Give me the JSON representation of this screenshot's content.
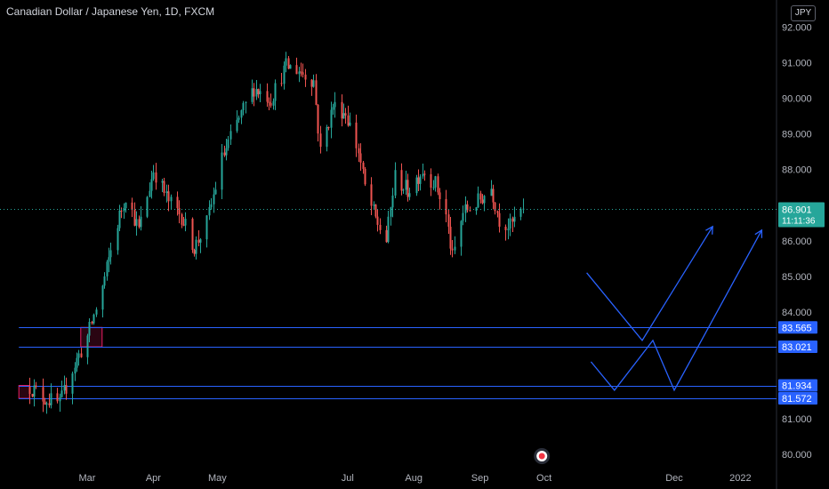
{
  "header": {
    "title": "Canadian Dollar / Japanese Yen, 1D, FXCM",
    "currency_badge": "JPY"
  },
  "price_tag": {
    "price": "86.901",
    "countdown": "11:11:36"
  },
  "colors": {
    "up": "#26a69a",
    "down": "#ef5350",
    "drawing": "#2962ff",
    "zone": "#e91e63",
    "price_tag": "#26a69a",
    "axis_text": "#b2b5be",
    "background": "#000000"
  },
  "chart_data": {
    "type": "candlestick",
    "title": "Canadian Dollar / Japanese Yen, 1D, FXCM",
    "y_axis": {
      "side": "right",
      "range": [
        79.1,
        92.1
      ],
      "ticks": [
        "92.000",
        "91.000",
        "90.000",
        "89.000",
        "88.000",
        "86.000",
        "85.000",
        "84.000",
        "81.000",
        "80.000"
      ]
    },
    "x_axis": {
      "ticks": [
        "Mar",
        "Apr",
        "May",
        "Jul",
        "Aug",
        "Sep",
        "Oct",
        "Dec",
        "2022"
      ]
    },
    "price_series": {
      "x_start": "2021-02-02",
      "x_end": "2021-09-21",
      "anchors": [
        [
          "2021-02-02",
          81.9
        ],
        [
          "2021-02-08",
          81.6
        ],
        [
          "2021-02-16",
          81.4
        ],
        [
          "2021-02-22",
          82.4
        ],
        [
          "2021-03-01",
          83.3
        ],
        [
          "2021-03-08",
          84.7
        ],
        [
          "2021-03-15",
          86.5
        ],
        [
          "2021-03-19",
          87.3
        ],
        [
          "2021-03-25",
          86.3
        ],
        [
          "2021-04-01",
          88.0
        ],
        [
          "2021-04-08",
          87.1
        ],
        [
          "2021-04-14",
          86.7
        ],
        [
          "2021-04-20",
          85.8
        ],
        [
          "2021-04-26",
          86.5
        ],
        [
          "2021-05-03",
          88.3
        ],
        [
          "2021-05-10",
          89.3
        ],
        [
          "2021-05-18",
          90.3
        ],
        [
          "2021-05-26",
          90.0
        ],
        [
          "2021-06-02",
          90.9
        ],
        [
          "2021-06-08",
          90.8
        ],
        [
          "2021-06-15",
          90.5
        ],
        [
          "2021-06-18",
          88.5
        ],
        [
          "2021-06-24",
          89.8
        ],
        [
          "2021-06-30",
          89.6
        ],
        [
          "2021-07-06",
          88.5
        ],
        [
          "2021-07-09",
          87.5
        ],
        [
          "2021-07-14",
          86.6
        ],
        [
          "2021-07-19",
          86.0
        ],
        [
          "2021-07-23",
          87.8
        ],
        [
          "2021-07-29",
          87.4
        ],
        [
          "2021-08-05",
          88.0
        ],
        [
          "2021-08-11",
          87.6
        ],
        [
          "2021-08-16",
          86.7
        ],
        [
          "2021-08-19",
          85.5
        ],
        [
          "2021-08-24",
          86.8
        ],
        [
          "2021-08-31",
          87.1
        ],
        [
          "2021-09-06",
          87.5
        ],
        [
          "2021-09-10",
          86.6
        ],
        [
          "2021-09-15",
          86.4
        ],
        [
          "2021-09-21",
          86.9
        ]
      ],
      "last": 86.901
    },
    "horizontal_levels": [
      {
        "label": "83.565",
        "value": 83.565
      },
      {
        "label": "83.021",
        "value": 83.021
      },
      {
        "label": "81.934",
        "value": 81.934
      },
      {
        "label": "81.572",
        "value": 81.572
      }
    ],
    "zones": [
      {
        "x": [
          "2021-02-26",
          "2021-03-08"
        ],
        "y": [
          83.021,
          83.565
        ]
      },
      {
        "x": [
          "2021-01-28",
          "2021-02-02"
        ],
        "y": [
          81.572,
          81.934
        ]
      }
    ],
    "projection_paths": [
      [
        [
          "2021-10-21",
          85.1
        ],
        [
          "2021-11-16",
          83.2
        ],
        [
          "2021-12-19",
          86.4
        ]
      ],
      [
        [
          "2021-10-23",
          82.6
        ],
        [
          "2021-11-03",
          81.8
        ],
        [
          "2021-11-21",
          83.2
        ],
        [
          "2021-12-01",
          81.8
        ],
        [
          "2022-01-11",
          86.3
        ]
      ]
    ],
    "current_price_line": 86.901,
    "event_marker_date": "2021-09-30"
  }
}
